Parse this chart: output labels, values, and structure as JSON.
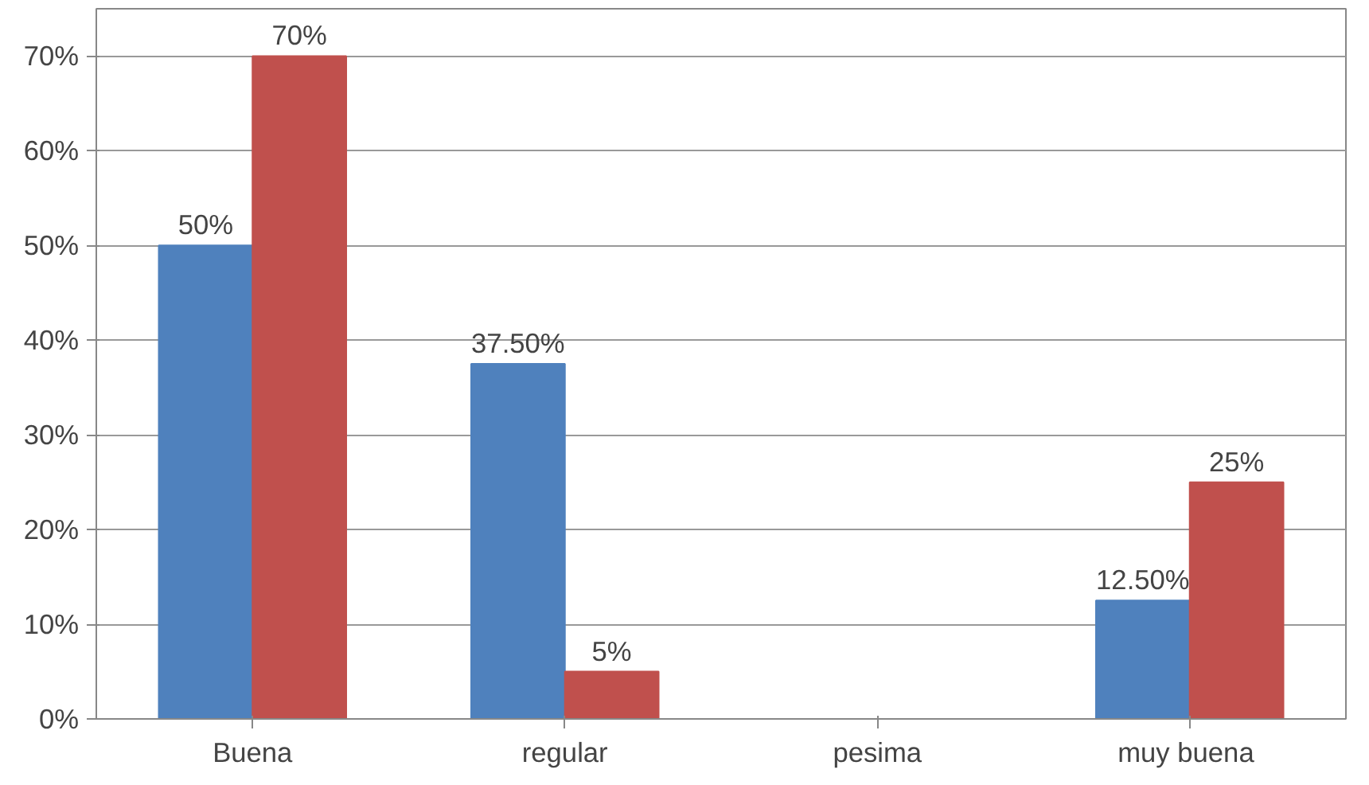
{
  "chart_data": {
    "type": "bar",
    "categories": [
      "Buena",
      "regular",
      "pesima",
      "muy  buena"
    ],
    "series": [
      {
        "color": "#4f81bd",
        "values": [
          50,
          37.5,
          null,
          12.5
        ],
        "value_labels": [
          "50%",
          "37.50%",
          null,
          "12.50%"
        ]
      },
      {
        "color": "#c0504d",
        "values": [
          70,
          5,
          null,
          25
        ],
        "value_labels": [
          "70%",
          "5%",
          null,
          "25%"
        ]
      }
    ],
    "ylim": [
      0,
      75
    ],
    "yticks": [
      {
        "value": 0,
        "label": "0%"
      },
      {
        "value": 10,
        "label": "10%"
      },
      {
        "value": 20,
        "label": "20%"
      },
      {
        "value": 30,
        "label": "30%"
      },
      {
        "value": 40,
        "label": "40%"
      },
      {
        "value": 50,
        "label": "50%"
      },
      {
        "value": 60,
        "label": "60%"
      },
      {
        "value": 70,
        "label": "70%"
      }
    ],
    "grid": "y"
  }
}
